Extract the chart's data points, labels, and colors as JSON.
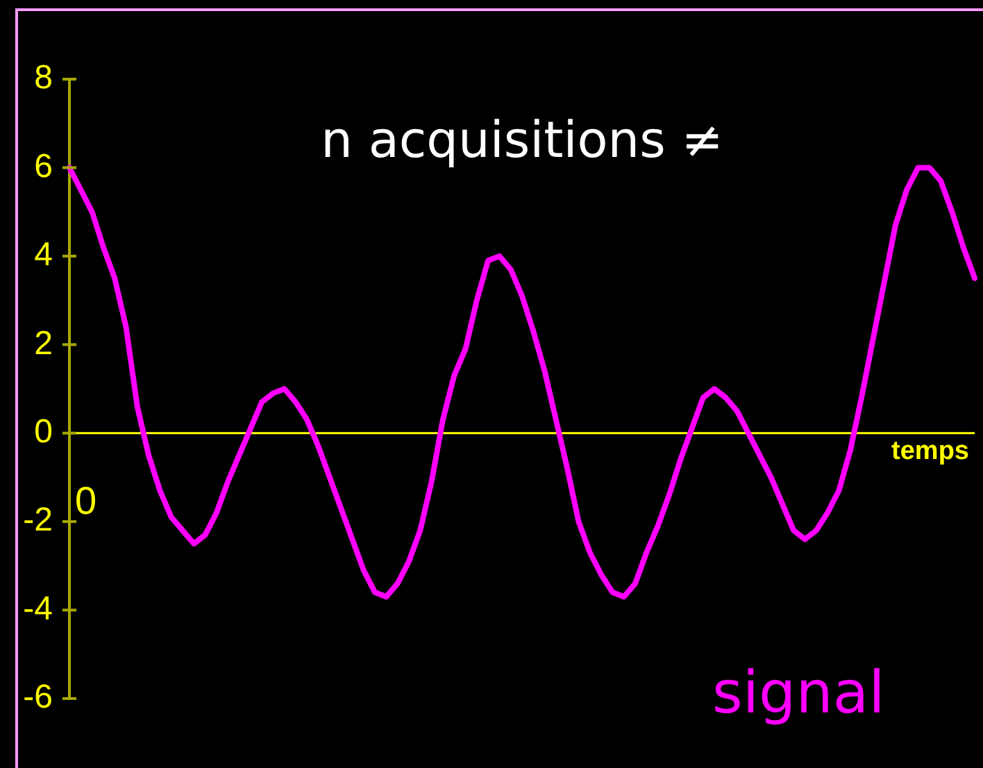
{
  "chart_data": {
    "type": "line",
    "title": "n acquisitions ≠",
    "xlabel": "temps",
    "annotations": [
      "0"
    ],
    "categories": [
      null,
      null,
      null,
      null,
      null,
      null,
      null,
      null,
      null,
      null,
      null,
      null,
      null,
      null,
      null,
      null,
      null,
      null,
      null,
      null,
      null,
      null,
      null,
      null,
      null,
      null,
      null,
      null,
      null,
      null,
      null,
      null,
      null,
      null,
      null,
      null,
      null,
      null,
      null,
      null,
      null,
      null,
      null,
      null,
      null,
      null,
      null,
      null,
      null,
      null,
      null,
      null,
      null,
      null,
      null,
      null,
      null,
      null,
      null,
      null,
      null,
      null,
      null,
      null,
      null,
      null,
      null,
      null,
      null,
      null,
      null,
      null,
      null,
      null,
      null,
      null,
      null,
      null,
      null,
      null,
      null
    ],
    "series": [
      {
        "name": "signal",
        "color": "#ff00ff",
        "values": [
          6.0,
          5.5,
          5.0,
          4.2,
          3.5,
          2.4,
          0.6,
          -0.5,
          -1.3,
          -1.9,
          -2.2,
          -2.5,
          -2.3,
          -1.8,
          -1.1,
          -0.5,
          0.1,
          0.7,
          0.9,
          1.0,
          0.7,
          0.3,
          -0.3,
          -1.0,
          -1.7,
          -2.4,
          -3.1,
          -3.6,
          -3.7,
          -3.4,
          -2.9,
          -2.2,
          -1.1,
          0.3,
          1.3,
          1.9,
          3.0,
          3.9,
          4.0,
          3.7,
          3.1,
          2.3,
          1.4,
          0.3,
          -0.8,
          -2.0,
          -2.7,
          -3.2,
          -3.6,
          -3.7,
          -3.4,
          -2.7,
          -2.1,
          -1.4,
          -0.6,
          0.1,
          0.8,
          1.0,
          0.8,
          0.5,
          0.0,
          -0.5,
          -1.0,
          -1.6,
          -2.2,
          -2.4,
          -2.2,
          -1.8,
          -1.3,
          -0.4,
          0.8,
          2.1,
          3.4,
          4.7,
          5.5,
          6.0,
          6.0,
          5.7,
          5.0,
          4.2,
          3.5
        ]
      }
    ],
    "ref_lines": [
      {
        "axis": "y",
        "value": 0,
        "color": "#ffff00"
      }
    ],
    "ylim": [
      -6,
      8
    ],
    "yticks": [
      -6,
      -4,
      -2,
      0,
      2,
      4,
      6,
      8
    ],
    "grid": false,
    "legend": false,
    "tick_labels": "y"
  }
}
